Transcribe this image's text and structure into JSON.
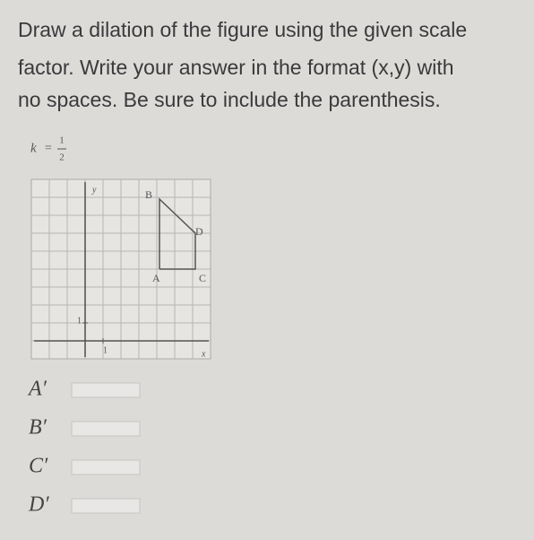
{
  "question": {
    "lines": [
      "Draw a dilation of the figure using the given scale",
      "factor. Write your answer in the format (x,y) with",
      "no spaces.  Be sure to include the parenthesis."
    ]
  },
  "scale_factor": {
    "variable": "k",
    "equals": "=",
    "numerator": "1",
    "denominator": "2"
  },
  "graph": {
    "x_axis_label": "x",
    "y_axis_label": "y",
    "x_unit_label": "1",
    "y_unit_label": "1",
    "points": [
      {
        "label": "A"
      },
      {
        "label": "B"
      },
      {
        "label": "C"
      },
      {
        "label": "D"
      }
    ]
  },
  "answers": [
    {
      "label": "A′"
    },
    {
      "label": "B′"
    },
    {
      "label": "C′"
    },
    {
      "label": "D′"
    }
  ]
}
